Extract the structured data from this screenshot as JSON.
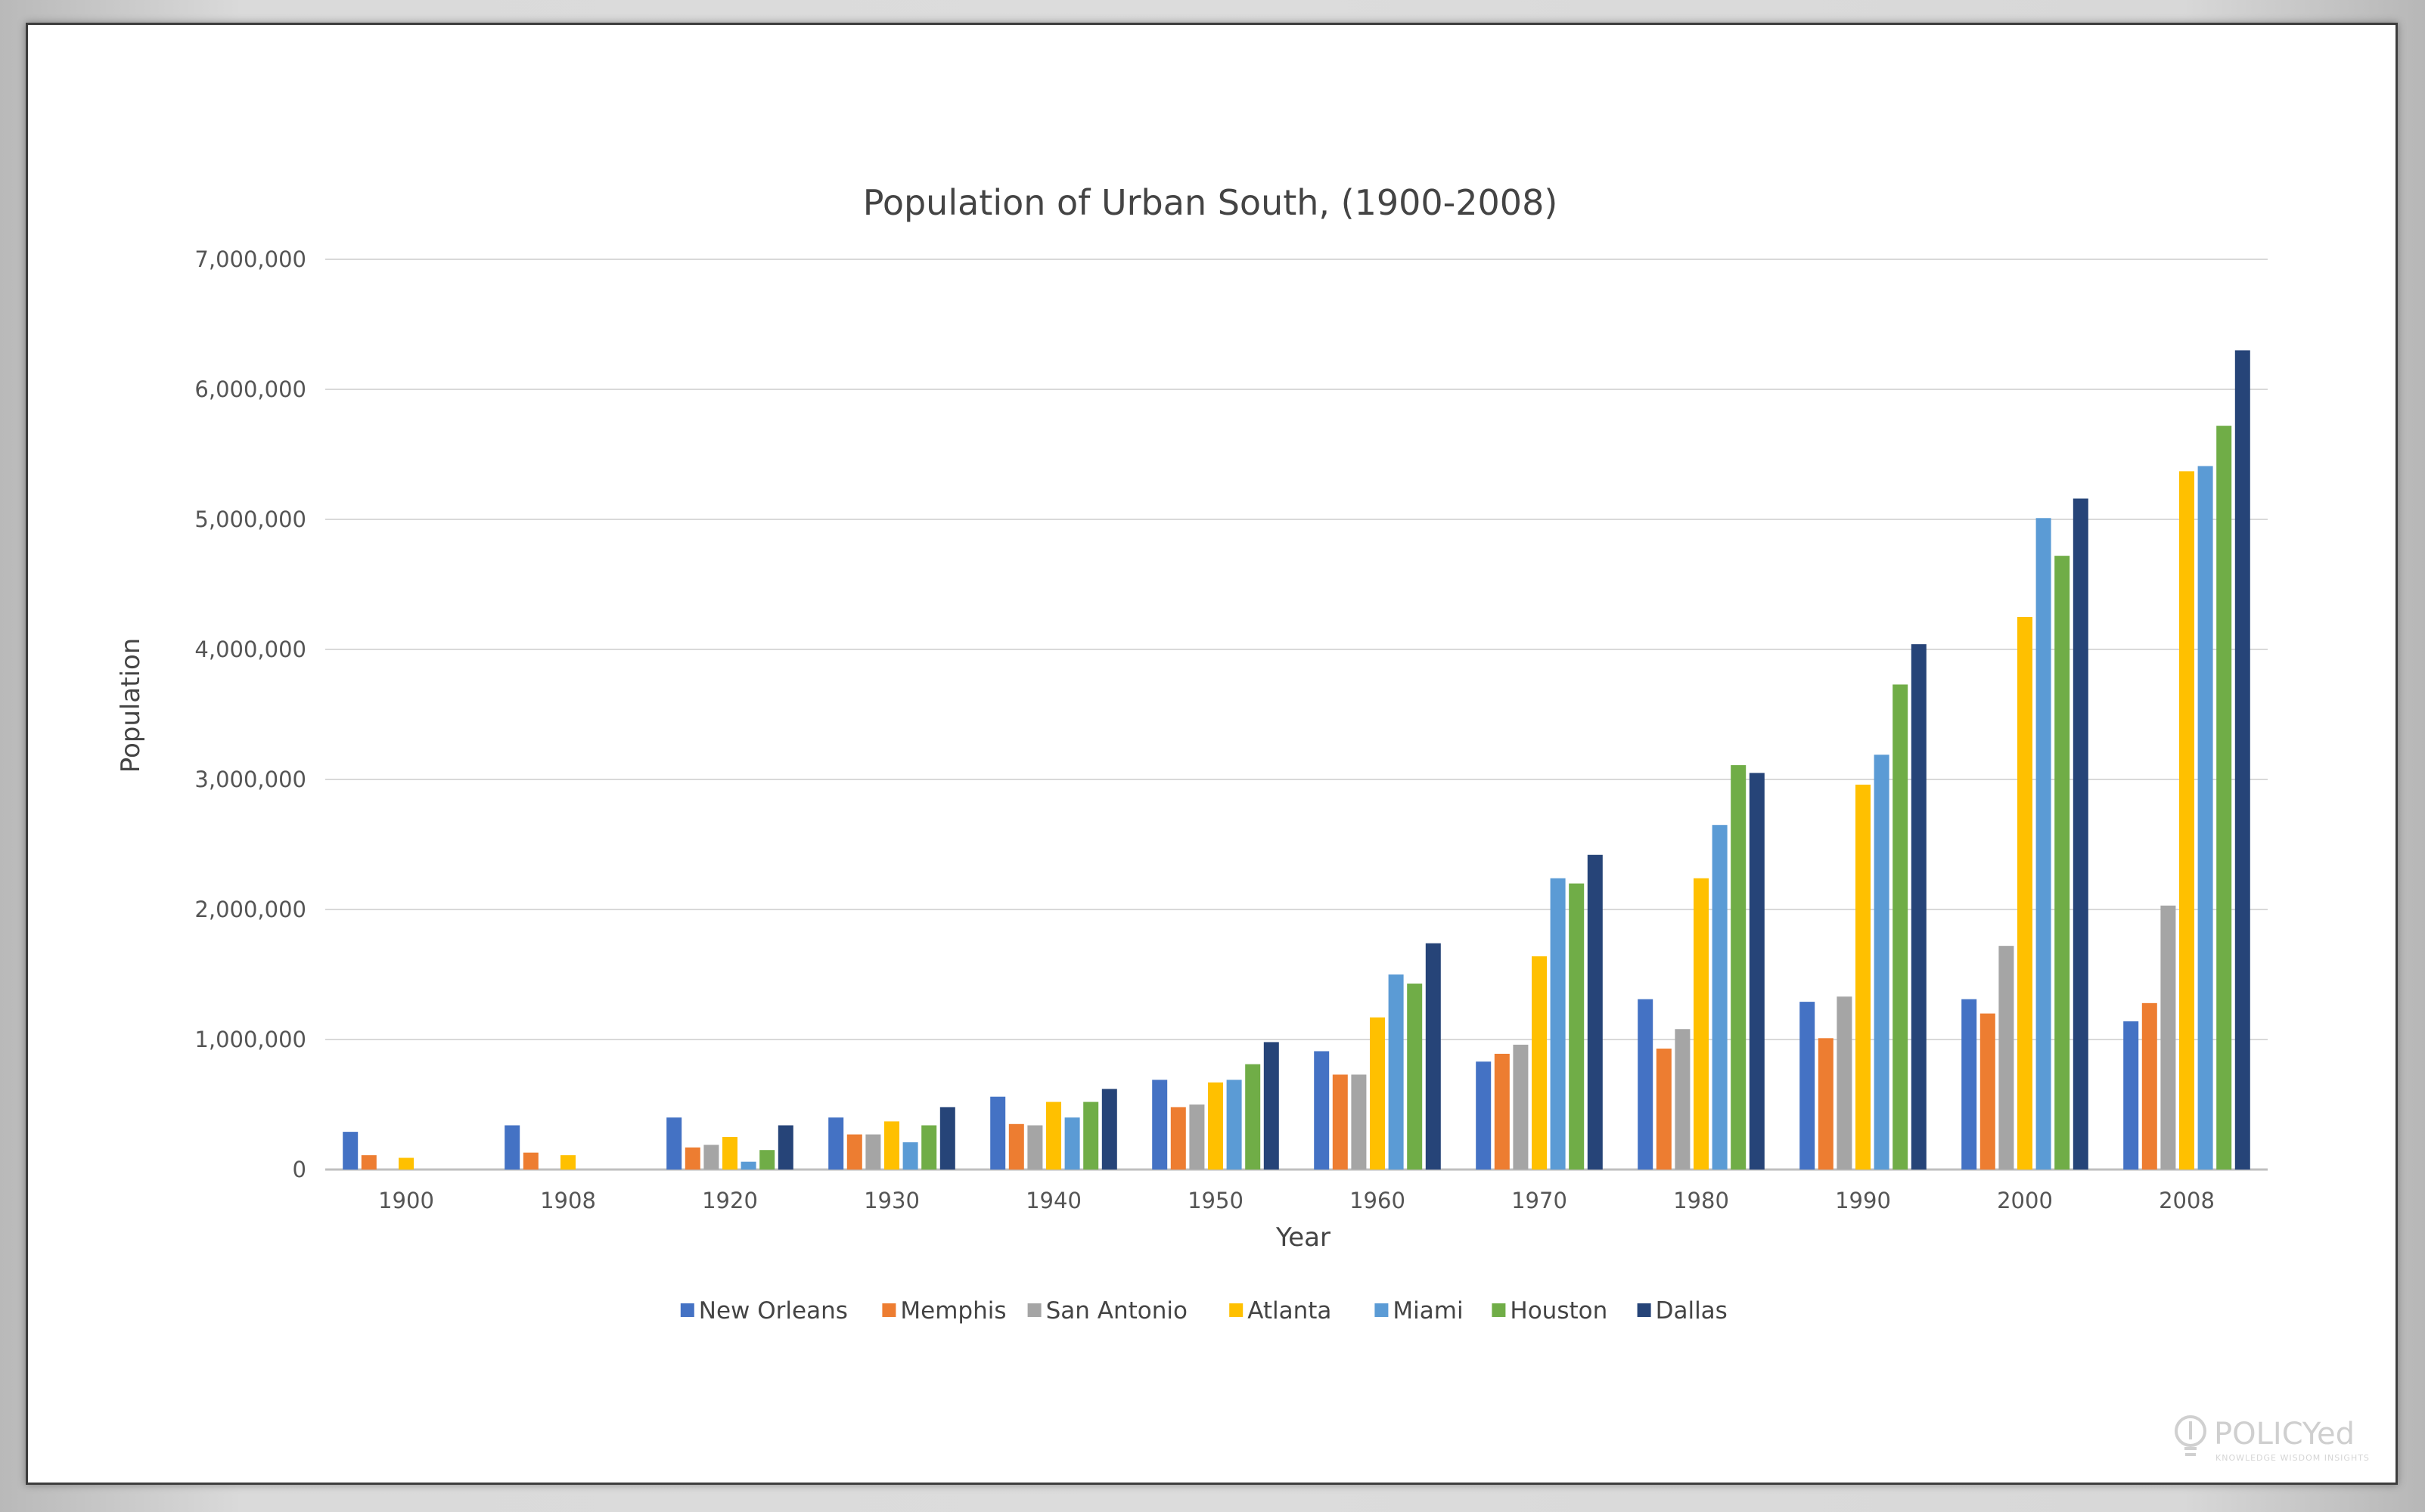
{
  "brand": {
    "logo_main": "POLICYed",
    "logo_tagline": "KNOWLEDGE WISDOM INSIGHTS"
  },
  "colors": {
    "New Orleans": "#4472C4",
    "Memphis": "#ED7D31",
    "San Antonio": "#A5A5A5",
    "Atlanta": "#FFC000",
    "Miami": "#5B9BD5",
    "Houston": "#70AD47",
    "Dallas": "#264478",
    "gridline": "#d9d9d9",
    "axis_line": "#bfbfbf"
  },
  "chart_data": {
    "type": "bar",
    "title": "Population of Urban South, (1900-2008)",
    "xlabel": "Year",
    "ylabel": "Population",
    "ylim": [
      0,
      7000000
    ],
    "yticks": [
      0,
      1000000,
      2000000,
      3000000,
      4000000,
      5000000,
      6000000,
      7000000
    ],
    "ytick_labels": [
      "0",
      "1,000,000",
      "2,000,000",
      "3,000,000",
      "4,000,000",
      "5,000,000",
      "6,000,000",
      "7,000,000"
    ],
    "grid": true,
    "legend_position": "bottom",
    "categories": [
      "1900",
      "1908",
      "1920",
      "1930",
      "1940",
      "1950",
      "1960",
      "1970",
      "1980",
      "1990",
      "2000",
      "2008"
    ],
    "series": [
      {
        "name": "New Orleans",
        "values": [
          290000,
          340000,
          400000,
          400000,
          560000,
          690000,
          910000,
          830000,
          1310000,
          1290000,
          1310000,
          1140000
        ]
      },
      {
        "name": "Memphis",
        "values": [
          110000,
          130000,
          170000,
          270000,
          350000,
          480000,
          730000,
          890000,
          930000,
          1010000,
          1200000,
          1280000
        ]
      },
      {
        "name": "San Antonio",
        "values": [
          0,
          0,
          190000,
          270000,
          340000,
          500000,
          730000,
          960000,
          1080000,
          1330000,
          1720000,
          2030000
        ]
      },
      {
        "name": "Atlanta",
        "values": [
          90000,
          110000,
          250000,
          370000,
          520000,
          670000,
          1170000,
          1640000,
          2240000,
          2960000,
          4250000,
          5370000
        ]
      },
      {
        "name": "Miami",
        "values": [
          0,
          0,
          60000,
          210000,
          400000,
          690000,
          1500000,
          2240000,
          2650000,
          3190000,
          5010000,
          5410000
        ]
      },
      {
        "name": "Houston",
        "values": [
          0,
          0,
          150000,
          340000,
          520000,
          810000,
          1430000,
          2200000,
          3110000,
          3730000,
          4720000,
          5720000
        ]
      },
      {
        "name": "Dallas",
        "values": [
          0,
          0,
          340000,
          480000,
          620000,
          980000,
          1740000,
          2420000,
          3050000,
          4040000,
          5160000,
          6300000
        ]
      }
    ]
  }
}
